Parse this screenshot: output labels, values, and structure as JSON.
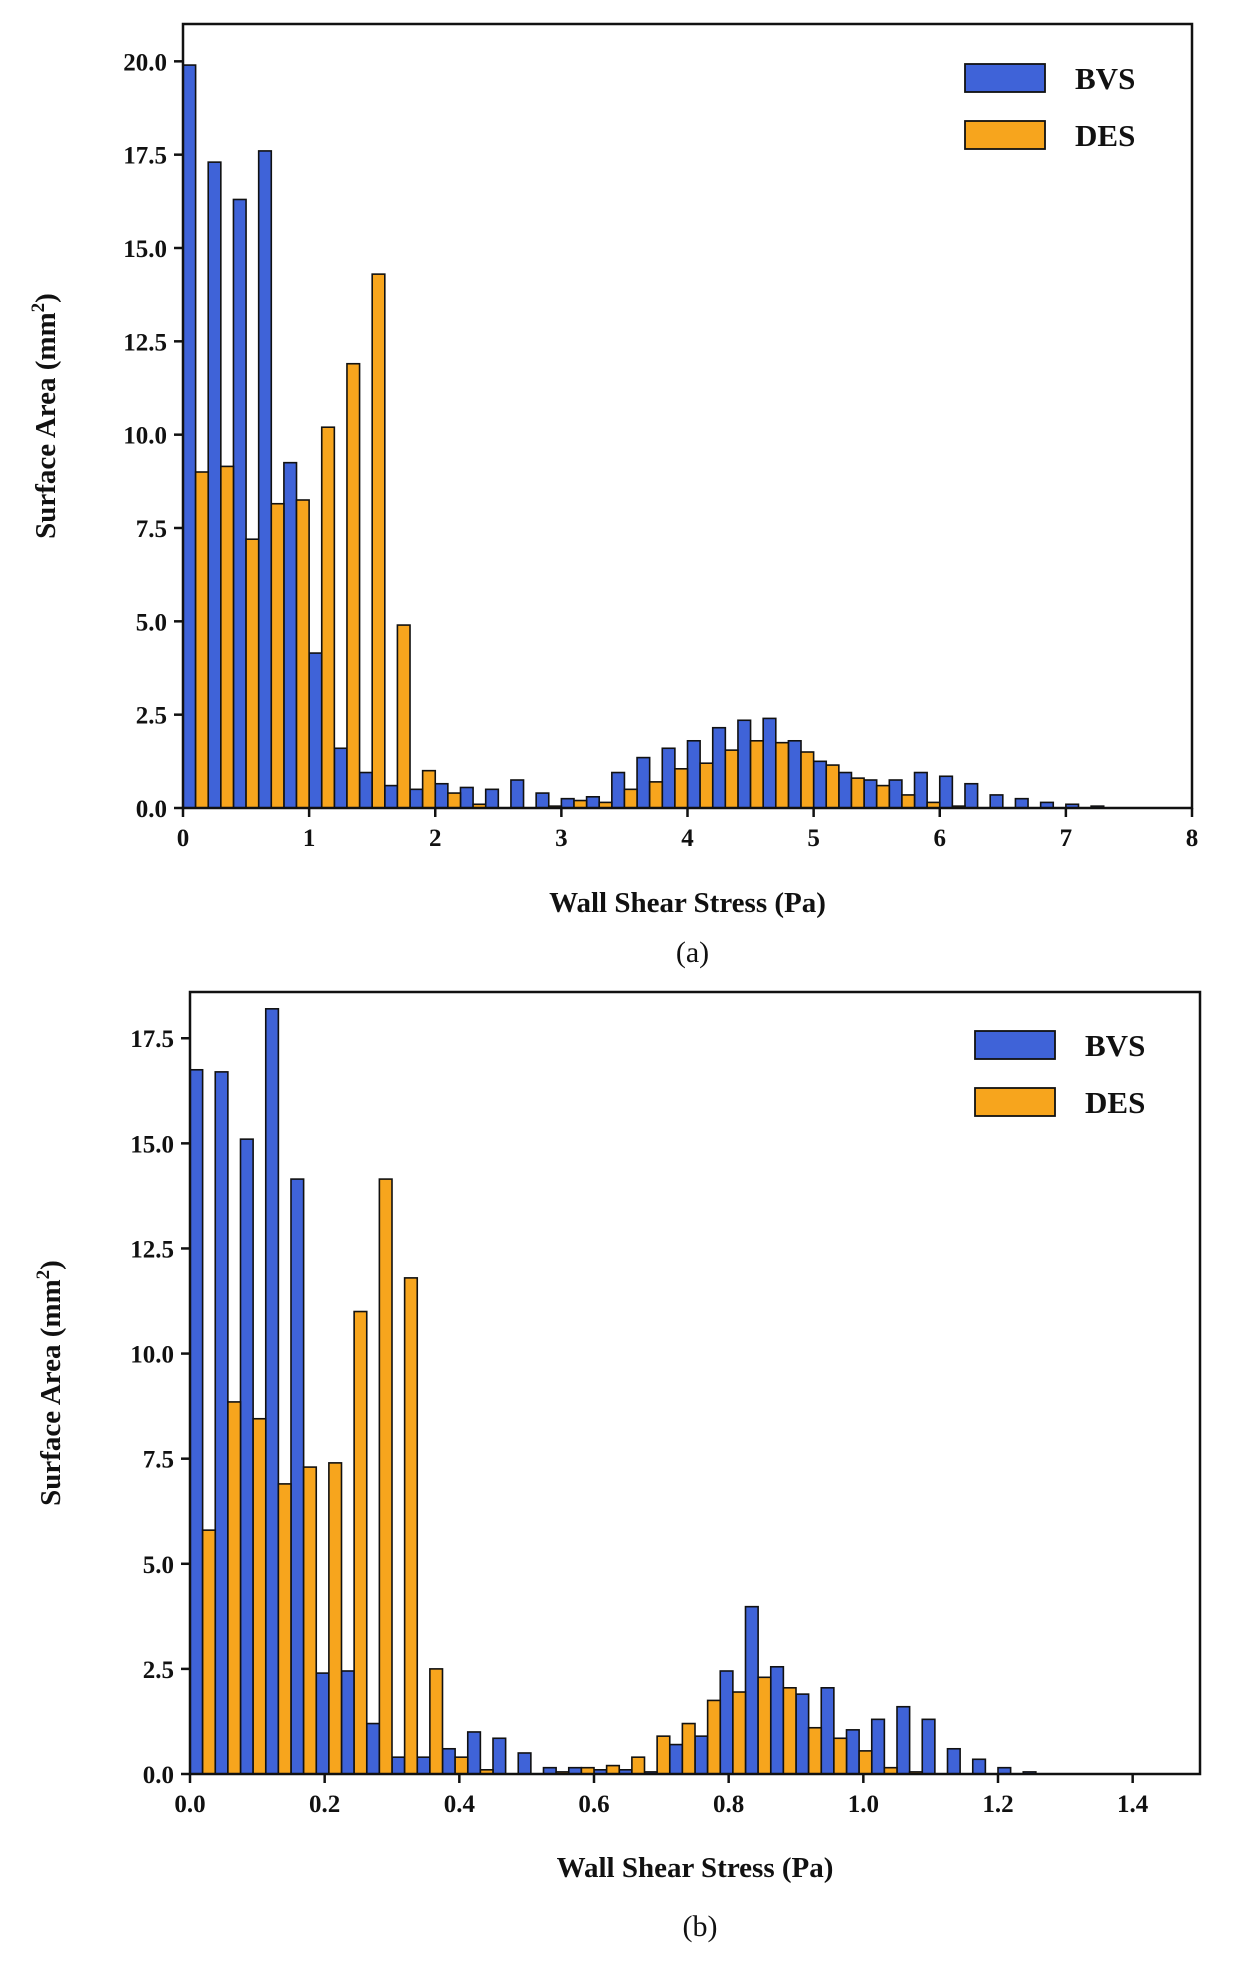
{
  "chart_data": [
    {
      "type": "bar",
      "panel": "a",
      "caption": "(a)",
      "xlabel": "Wall Shear Stress (Pa)",
      "ylabel_main": "Surface Area (mm",
      "ylabel_sup": "2",
      "ylabel_close": ")",
      "xlim": [
        0,
        8
      ],
      "ylim": [
        0,
        21
      ],
      "xticks": [
        0,
        1,
        2,
        3,
        4,
        5,
        6,
        7,
        8
      ],
      "xtick_labels": [
        "0",
        "1",
        "2",
        "3",
        "4",
        "5",
        "6",
        "7",
        "8"
      ],
      "yticks": [
        0,
        2.5,
        5,
        7.5,
        10,
        12.5,
        15,
        17.5,
        20
      ],
      "ytick_labels": [
        "0.0",
        "2.5",
        "5.0",
        "7.5",
        "10.0",
        "12.5",
        "15.0",
        "17.5",
        "20.0"
      ],
      "bin_width": 0.2,
      "legend_position": "top-right",
      "series": [
        {
          "name": "BVS",
          "color": "#3f63d8",
          "values": [
            19.9,
            17.3,
            16.3,
            17.6,
            9.25,
            4.15,
            1.6,
            0.95,
            0.6,
            0.5,
            0.65,
            0.55,
            0.5,
            0.75,
            0.4,
            0.25,
            0.3,
            0.95,
            1.35,
            1.6,
            1.8,
            2.15,
            2.35,
            2.4,
            1.8,
            1.25,
            0.95,
            0.75,
            0.75,
            0.95,
            0.85,
            0.65,
            0.35,
            0.25,
            0.15,
            0.1,
            0.05,
            0.0,
            0.0,
            0.0
          ]
        },
        {
          "name": "DES",
          "color": "#f7a51d",
          "values": [
            9.0,
            9.15,
            7.2,
            8.15,
            8.25,
            10.2,
            11.9,
            14.3,
            4.9,
            1.0,
            0.4,
            0.1,
            0.0,
            0.0,
            0.05,
            0.2,
            0.15,
            0.5,
            0.7,
            1.05,
            1.2,
            1.55,
            1.8,
            1.75,
            1.5,
            1.15,
            0.8,
            0.6,
            0.35,
            0.15,
            0.05,
            0.0,
            0.0,
            0.0,
            0.0,
            0.0,
            0.0,
            0.0,
            0.0,
            0.0
          ]
        }
      ]
    },
    {
      "type": "bar",
      "panel": "b",
      "caption": "(b)",
      "xlabel": "Wall Shear Stress (Pa)",
      "ylabel_main": "Surface Area (mm",
      "ylabel_sup": "2",
      "ylabel_close": ")",
      "xlim": [
        0,
        1.5
      ],
      "ylim": [
        0,
        18.6
      ],
      "xticks": [
        0,
        0.2,
        0.4,
        0.6,
        0.8,
        1.0,
        1.2,
        1.4
      ],
      "xtick_labels": [
        "0.0",
        "0.2",
        "0.4",
        "0.6",
        "0.8",
        "1.0",
        "1.2",
        "1.4"
      ],
      "yticks": [
        0,
        2.5,
        5,
        7.5,
        10,
        12.5,
        15,
        17.5
      ],
      "ytick_labels": [
        "0.0",
        "2.5",
        "5.0",
        "7.5",
        "10.0",
        "12.5",
        "15.0",
        "17.5"
      ],
      "bin_width": 0.0375,
      "legend_position": "top-right",
      "series": [
        {
          "name": "BVS",
          "color": "#3f63d8",
          "values": [
            16.75,
            16.7,
            15.1,
            18.2,
            14.15,
            2.4,
            2.45,
            1.2,
            0.4,
            0.4,
            0.6,
            1.0,
            0.85,
            0.5,
            0.15,
            0.15,
            0.1,
            0.1,
            0.05,
            0.7,
            0.9,
            2.45,
            3.98,
            2.55,
            1.9,
            2.05,
            1.05,
            1.3,
            1.6,
            1.3,
            0.6,
            0.35,
            0.15,
            0.05,
            0.0,
            0.0,
            0.0,
            0.0,
            0.0,
            0.0
          ]
        },
        {
          "name": "DES",
          "color": "#f7a51d",
          "values": [
            5.8,
            8.85,
            8.45,
            6.9,
            7.3,
            7.4,
            11.0,
            14.15,
            11.8,
            2.5,
            0.4,
            0.1,
            0.0,
            0.0,
            0.05,
            0.15,
            0.2,
            0.4,
            0.9,
            1.2,
            1.75,
            1.95,
            2.3,
            2.05,
            1.1,
            0.85,
            0.55,
            0.15,
            0.05,
            0.0,
            0.0,
            0.0,
            0.0,
            0.0,
            0.0,
            0.0,
            0.0,
            0.0,
            0.0,
            0.0
          ]
        }
      ]
    }
  ]
}
